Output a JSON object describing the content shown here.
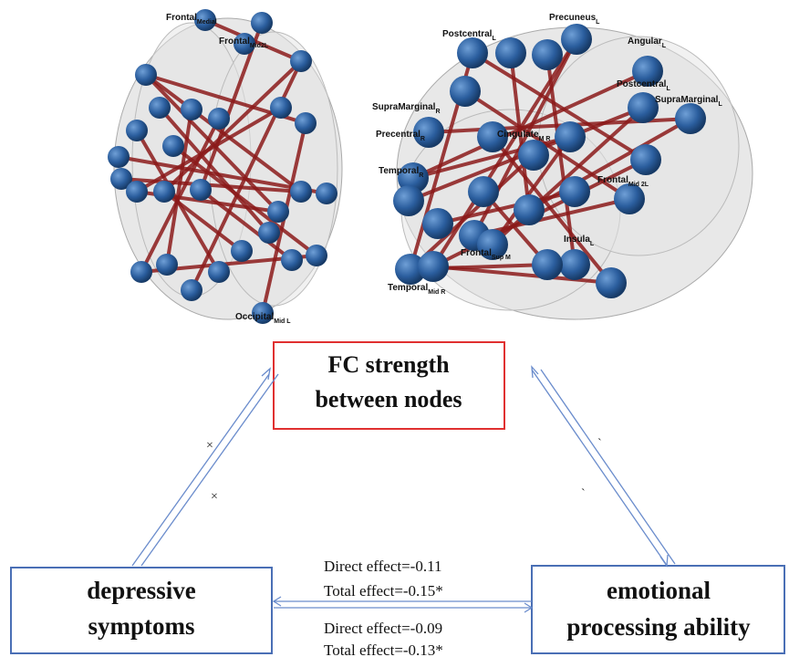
{
  "brain_labels": [
    {
      "text": "Frontal",
      "sub": "Medial"
    },
    {
      "text": "Frontal",
      "sub": "Mid2L"
    },
    {
      "text": "Occipital",
      "sub": "Mid L"
    },
    {
      "text": "Postcentral",
      "sub": "L"
    },
    {
      "text": "Precuneus",
      "sub": "L"
    },
    {
      "text": "Angular",
      "sub": "L"
    },
    {
      "text": "Postcentral",
      "sub": "L"
    },
    {
      "text": "SupraMarginal",
      "sub": "R"
    },
    {
      "text": "SupraMarginal",
      "sub": "L"
    },
    {
      "text": "Precentral",
      "sub": "R"
    },
    {
      "text": "Temporal",
      "sub": "R"
    },
    {
      "text": "Cingulate",
      "sub": "M R"
    },
    {
      "text": "Frontal",
      "sub": "Mid 2L"
    },
    {
      "text": "Frontal",
      "sub": "Sup M"
    },
    {
      "text": "Insula",
      "sub": "L"
    },
    {
      "text": "Temporal",
      "sub": "Mid R"
    }
  ],
  "mediator": {
    "line1": "FC strength",
    "line2": "between nodes"
  },
  "predictor": {
    "line1": "depressive",
    "line2": "symptoms"
  },
  "outcome": {
    "line1": "emotional",
    "line2": "processing ability"
  },
  "path_marks": {
    "a1": "×",
    "a2": "×",
    "b1": "`",
    "b2": "`"
  },
  "effects": {
    "direct_1": "Direct effect=-0.11",
    "total_1": "Total effect=-0.15*",
    "direct_2": "Direct effect=-0.09",
    "total_2": "Total effect=-0.13*"
  }
}
